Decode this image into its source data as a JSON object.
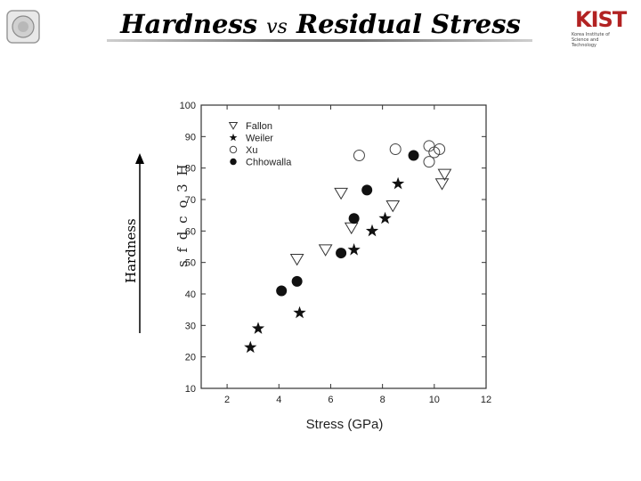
{
  "slide": {
    "title_part1": "Hardness",
    "title_vs": "vs",
    "title_part2": "Residual Stress",
    "side_label": "Hardness",
    "garbled_text": "s f d c o",
    "garbled_note": "3 H",
    "kist_logo": "KIST",
    "kist_tagline": "Korea Institute of Science and Technology"
  },
  "chart_data": {
    "type": "scatter",
    "xlabel": "Stress (GPa)",
    "ylabel": "",
    "xlim": [
      1,
      12
    ],
    "ylim": [
      10,
      100
    ],
    "xticks": [
      2,
      4,
      6,
      8,
      10,
      12
    ],
    "yticks": [
      10,
      20,
      30,
      40,
      50,
      60,
      70,
      80,
      90,
      100
    ],
    "legend_position": "top-left",
    "series": [
      {
        "name": "Fallon",
        "marker": "open-triangle-down",
        "points": [
          [
            4.7,
            51
          ],
          [
            5.8,
            54
          ],
          [
            6.8,
            61
          ],
          [
            6.4,
            72
          ],
          [
            8.4,
            68
          ],
          [
            10.3,
            75
          ],
          [
            10.4,
            78
          ]
        ]
      },
      {
        "name": "Weiler",
        "marker": "star",
        "points": [
          [
            2.9,
            23
          ],
          [
            3.2,
            29
          ],
          [
            4.8,
            34
          ],
          [
            6.9,
            54
          ],
          [
            7.6,
            60
          ],
          [
            8.1,
            64
          ],
          [
            8.6,
            75
          ]
        ]
      },
      {
        "name": "Xu",
        "marker": "open-circle",
        "points": [
          [
            7.1,
            84
          ],
          [
            8.5,
            86
          ],
          [
            9.8,
            87
          ],
          [
            10.2,
            86
          ],
          [
            10.0,
            85
          ],
          [
            9.8,
            82
          ]
        ]
      },
      {
        "name": "Chhowalla",
        "marker": "filled-circle",
        "points": [
          [
            4.1,
            41
          ],
          [
            4.7,
            44
          ],
          [
            6.4,
            53
          ],
          [
            6.9,
            64
          ],
          [
            7.4,
            73
          ],
          [
            9.2,
            84
          ]
        ]
      }
    ]
  }
}
